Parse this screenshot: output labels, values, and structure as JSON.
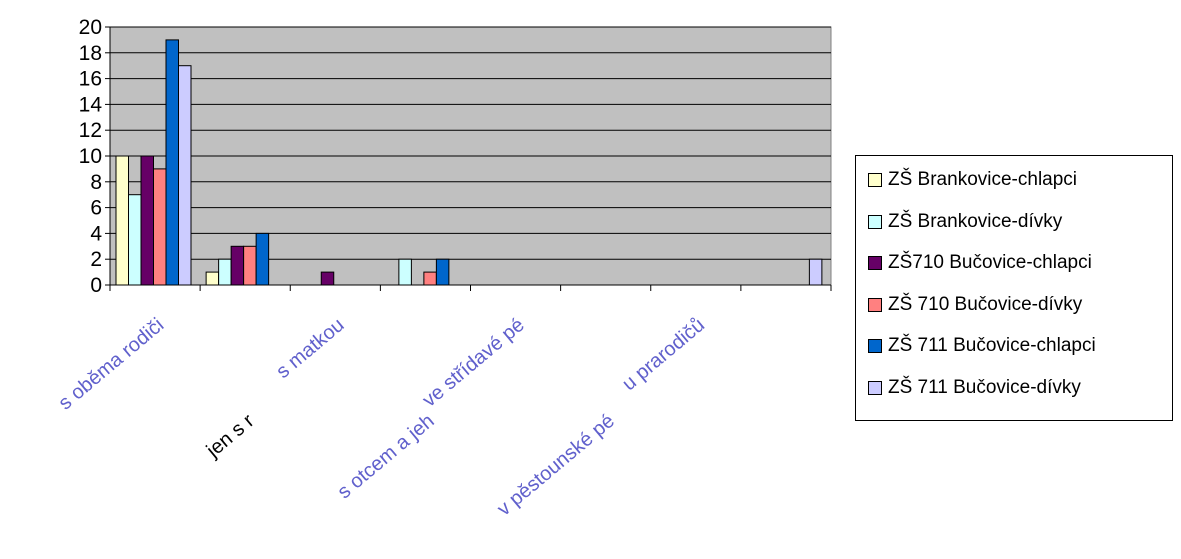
{
  "chart_data": {
    "type": "bar",
    "categories": [
      "s oběma rodiči",
      "jen s r",
      "s matkou",
      "s otcem a jeh",
      "ve střídavé pé",
      "v pěstounské pé",
      "u prarodičů",
      ""
    ],
    "series": [
      {
        "name": "ZŠ Brankovice-chlapci",
        "color": "#ffffcc",
        "values": [
          10,
          1,
          0,
          0,
          0,
          0,
          0,
          0
        ]
      },
      {
        "name": "ZŠ Brankovice-dívky",
        "color": "#ccffff",
        "values": [
          7,
          2,
          0,
          2,
          0,
          0,
          0,
          0
        ]
      },
      {
        "name": "ZŠ710 Bučovice-chlapci",
        "color": "#660066",
        "values": [
          10,
          3,
          1,
          0,
          0,
          0,
          0,
          0
        ]
      },
      {
        "name": "ZŠ 710 Bučovice-dívky",
        "color": "#ff8080",
        "values": [
          9,
          3,
          0,
          1,
          0,
          0,
          0,
          0
        ]
      },
      {
        "name": "ZŠ 711 Bučovice-chlapci",
        "color": "#0066cc",
        "values": [
          19,
          4,
          0,
          2,
          0,
          0,
          0,
          0
        ]
      },
      {
        "name": "ZŠ 711 Bučovice-dívky",
        "color": "#ccccff",
        "values": [
          17,
          0,
          0,
          0,
          0,
          0,
          0,
          2
        ]
      }
    ],
    "yticks": [
      "0",
      "2",
      "4",
      "6",
      "8",
      "10",
      "12",
      "14",
      "16",
      "18",
      "20"
    ],
    "ylim": [
      0,
      20
    ],
    "plot_background": "#c0c0c0",
    "grid": true,
    "legend_position": "right"
  }
}
